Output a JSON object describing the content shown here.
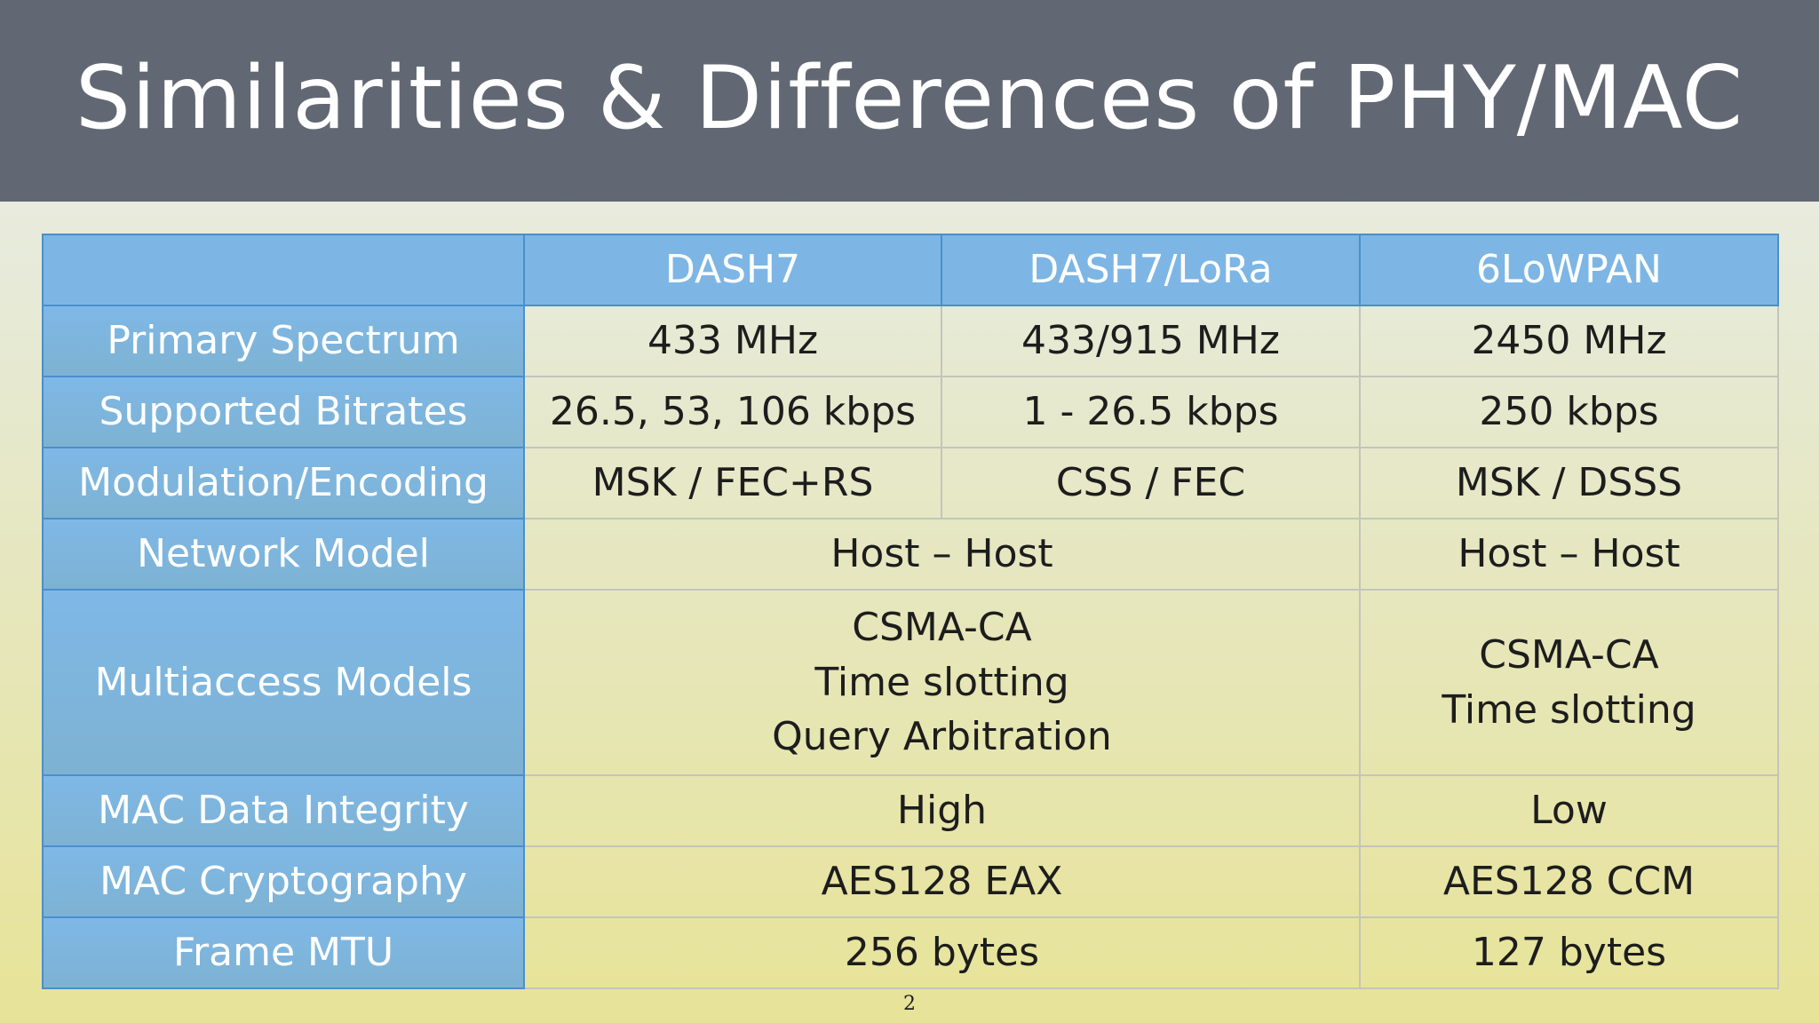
{
  "title": "Similarities & Differences of PHY/MAC",
  "columns": [
    "DASH7",
    "DASH7/LoRa",
    "6LoWPAN"
  ],
  "rows": {
    "primary_spectrum": {
      "label": "Primary Spectrum",
      "dash7": "433 MHz",
      "lora": "433/915 MHz",
      "lowpan": "2450 MHz"
    },
    "supported_bitrates": {
      "label": "Supported Bitrates",
      "dash7": "26.5, 53, 106 kbps",
      "lora": "1 - 26.5 kbps",
      "lowpan": "250 kbps"
    },
    "modulation": {
      "label": "Modulation/Encoding",
      "dash7": "MSK / FEC+RS",
      "lora": "CSS / FEC",
      "lowpan": "MSK / DSSS"
    },
    "network_model": {
      "label": "Network Model",
      "shared": "Host – Host",
      "lowpan": "Host – Host"
    },
    "multiaccess": {
      "label": "Multiaccess Models",
      "shared": [
        "CSMA-CA",
        "Time slotting",
        "Query Arbitration"
      ],
      "lowpan": [
        "CSMA-CA",
        "Time slotting"
      ]
    },
    "data_integrity": {
      "label": "MAC Data Integrity",
      "shared": "High",
      "lowpan": "Low"
    },
    "cryptography": {
      "label": "MAC Cryptography",
      "shared": "AES128 EAX",
      "lowpan": "AES128 CCM"
    },
    "frame_mtu": {
      "label": "Frame MTU",
      "shared": "256 bytes",
      "lowpan": "127 bytes"
    }
  },
  "page_number": "2"
}
